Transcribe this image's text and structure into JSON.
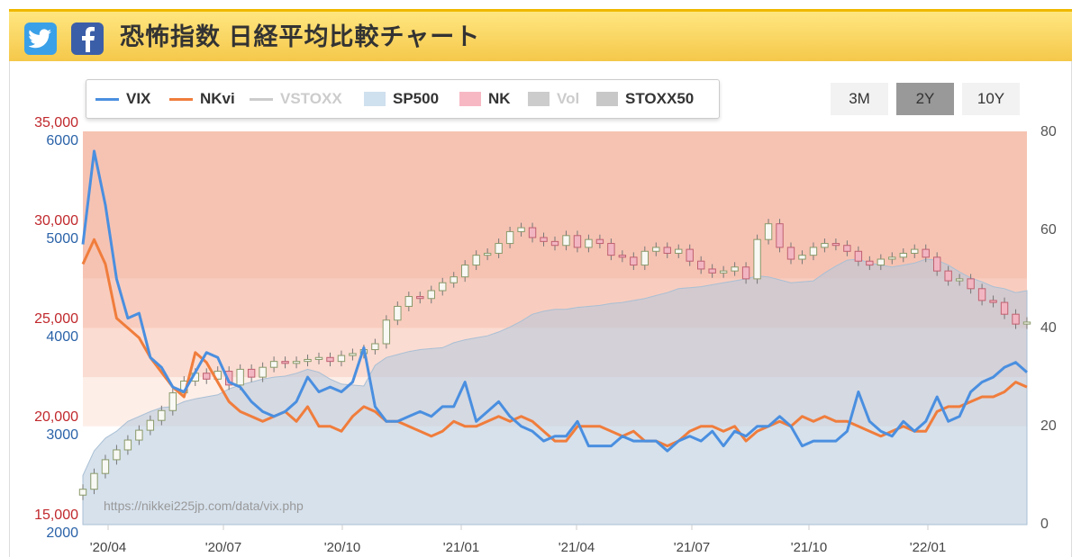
{
  "header": {
    "title": "恐怖指数 日経平均比較チャート",
    "twitter_icon": "twitter-icon",
    "facebook_icon": "facebook-icon",
    "bg_color": "#f7cf55"
  },
  "range_buttons": [
    {
      "label": "3M",
      "active": false
    },
    {
      "label": "2Y",
      "active": true
    },
    {
      "label": "10Y",
      "active": false
    }
  ],
  "watermark": "https://nikkei225jp.com/data/vix.php",
  "chart_data": {
    "type": "line",
    "legend": [
      {
        "name": "VIX",
        "kind": "line",
        "color": "#4a8fe0",
        "enabled": true
      },
      {
        "name": "NKvi",
        "kind": "line",
        "color": "#f07d3c",
        "enabled": true
      },
      {
        "name": "VSTOXX",
        "kind": "line",
        "color": "#cccccc",
        "enabled": false
      },
      {
        "name": "SP500",
        "kind": "area",
        "color": "#cfe0ee",
        "enabled": true
      },
      {
        "name": "NK",
        "kind": "candlestick",
        "color": "#f7b8c4",
        "enabled": true
      },
      {
        "name": "Vol",
        "kind": "area",
        "color": "#cccccc",
        "enabled": false
      },
      {
        "name": "STOXX50",
        "kind": "area",
        "color": "#c8c8c8",
        "enabled": true
      }
    ],
    "x_ticks": [
      "'20/04",
      "'20/07",
      "'20/10",
      "'21/01",
      "'21/04",
      "'21/07",
      "'21/10",
      "'22/01"
    ],
    "y_left_nk": {
      "ticks": [
        "35,000",
        "30,000",
        "25,000",
        "20,000",
        "15,000"
      ],
      "range": [
        15000,
        35000
      ],
      "color": "#c0282c"
    },
    "y_left_sp500": {
      "ticks": [
        "6000",
        "5000",
        "4000",
        "3000",
        "2000"
      ],
      "range": [
        2000,
        6000
      ],
      "color": "#2a62a8"
    },
    "y_right_vol": {
      "ticks": [
        "80",
        "60",
        "40",
        "20",
        "0"
      ],
      "range": [
        0,
        80
      ]
    },
    "fear_zones": [
      {
        "from": 0,
        "to": 20,
        "color": "#ffffff"
      },
      {
        "from": 20,
        "to": 30,
        "color": "#fdeee8"
      },
      {
        "from": 30,
        "to": 40,
        "color": "#fbdcd2"
      },
      {
        "from": 40,
        "to": 50,
        "color": "#f8cdbf"
      },
      {
        "from": 50,
        "to": 80,
        "color": "#f6c3b3"
      }
    ],
    "series": [
      {
        "name": "VIX",
        "axis": "vol",
        "values": [
          57,
          76,
          65,
          50,
          42,
          43,
          34,
          32,
          28,
          27,
          31,
          35,
          34,
          29,
          28,
          25,
          23,
          22,
          23,
          25,
          30,
          27,
          28,
          27,
          29,
          36,
          24,
          21,
          21,
          22,
          23,
          22,
          24,
          24,
          29,
          21,
          23,
          25,
          22,
          20,
          19,
          17,
          18,
          18,
          21,
          16,
          16,
          16,
          18,
          17,
          17,
          17,
          15,
          17,
          18,
          17,
          19,
          16,
          19,
          18,
          20,
          20,
          22,
          20,
          16,
          17,
          17,
          17,
          19,
          27,
          21,
          19,
          18,
          21,
          19,
          21,
          26,
          21,
          22,
          27,
          29,
          30,
          32,
          33,
          31
        ]
      },
      {
        "name": "NKvi",
        "axis": "vol",
        "values": [
          53,
          58,
          53,
          42,
          40,
          38,
          34,
          31,
          28,
          26,
          35,
          33,
          29,
          25,
          23,
          22,
          21,
          22,
          23,
          21,
          24,
          20,
          20,
          19,
          22,
          24,
          23,
          21,
          21,
          20,
          19,
          18,
          19,
          21,
          20,
          20,
          21,
          22,
          21,
          22,
          21,
          19,
          17,
          17,
          20,
          20,
          20,
          19,
          18,
          19,
          17,
          17,
          16,
          17,
          19,
          20,
          20,
          19,
          20,
          17,
          19,
          20,
          21,
          20,
          22,
          21,
          22,
          21,
          21,
          20,
          19,
          18,
          19,
          20,
          19,
          19,
          23,
          24,
          24,
          25,
          26,
          26,
          27,
          29,
          28
        ]
      },
      {
        "name": "SP500",
        "axis": "sp500",
        "values": [
          2500,
          2750,
          2880,
          2950,
          3050,
          3100,
          3150,
          3190,
          3200,
          3250,
          3280,
          3300,
          3320,
          3380,
          3420,
          3450,
          3480,
          3500,
          3510,
          3540,
          3580,
          3550,
          3480,
          3430,
          3420,
          3410,
          3620,
          3700,
          3730,
          3760,
          3780,
          3790,
          3800,
          3850,
          3880,
          3900,
          3920,
          3960,
          4010,
          4070,
          4140,
          4170,
          4190,
          4190,
          4210,
          4220,
          4230,
          4250,
          4260,
          4280,
          4300,
          4330,
          4360,
          4400,
          4410,
          4420,
          4440,
          4460,
          4480,
          4500,
          4530,
          4520,
          4490,
          4460,
          4470,
          4480,
          4560,
          4630,
          4690,
          4700,
          4660,
          4640,
          4620,
          4640,
          4660,
          4700,
          4690,
          4640,
          4570,
          4510,
          4470,
          4420,
          4400,
          4360,
          4380
        ]
      },
      {
        "name": "NK",
        "axis": "nk",
        "values": [
          16800,
          17600,
          18300,
          18800,
          19300,
          19800,
          20300,
          20800,
          21700,
          22300,
          22700,
          22400,
          22800,
          22100,
          22900,
          22500,
          23000,
          23300,
          23200,
          23300,
          23400,
          23500,
          23300,
          23600,
          23700,
          23900,
          24200,
          25400,
          26100,
          26600,
          26500,
          26900,
          27300,
          27600,
          28200,
          28700,
          28800,
          29300,
          29900,
          30100,
          29600,
          29400,
          29200,
          29700,
          29100,
          29500,
          29300,
          28700,
          28600,
          28200,
          28900,
          29100,
          28800,
          29000,
          28400,
          28000,
          27800,
          27900,
          28100,
          27500,
          29500,
          30300,
          29100,
          28500,
          28700,
          29100,
          29300,
          29200,
          28900,
          28400,
          28200,
          28500,
          28600,
          28800,
          29000,
          28600,
          27900,
          27400,
          27500,
          27000,
          26400,
          26300,
          25700,
          25200,
          25300
        ]
      }
    ]
  }
}
